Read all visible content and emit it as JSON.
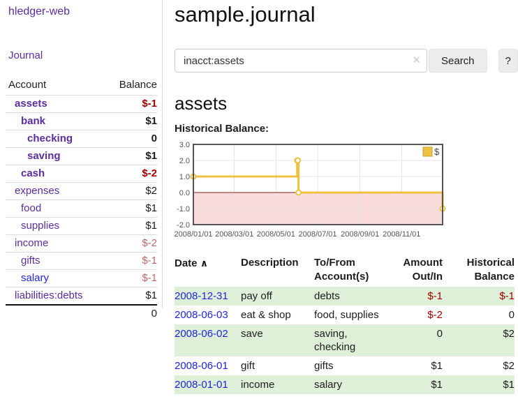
{
  "app": {
    "title": "hledger-web"
  },
  "sidebar": {
    "journal_link": "Journal",
    "table_headers": {
      "account": "Account",
      "balance": "Balance"
    },
    "accounts": [
      {
        "name": "assets",
        "level": 1,
        "bold": true,
        "link": "purple",
        "balance": "$-1",
        "tone": "neg"
      },
      {
        "name": "bank",
        "level": 2,
        "bold": true,
        "link": "purple",
        "balance": "$1",
        "tone": "plain"
      },
      {
        "name": "checking",
        "level": 3,
        "bold": true,
        "link": "purple",
        "balance": "0",
        "tone": "plain"
      },
      {
        "name": "saving",
        "level": 3,
        "bold": true,
        "link": "purple",
        "balance": "$1",
        "tone": "plain"
      },
      {
        "name": "cash",
        "level": 2,
        "bold": true,
        "link": "purple",
        "balance": "$-2",
        "tone": "neg"
      },
      {
        "name": "expenses",
        "level": 1,
        "bold": false,
        "link": "purple",
        "balance": "$2",
        "tone": "plain"
      },
      {
        "name": "food",
        "level": 2,
        "bold": false,
        "link": "purple",
        "balance": "$1",
        "tone": "plain"
      },
      {
        "name": "supplies",
        "level": 2,
        "bold": false,
        "link": "purple",
        "balance": "$1",
        "tone": "plain"
      },
      {
        "name": "income",
        "level": 1,
        "bold": false,
        "link": "purple",
        "balance": "$-2",
        "tone": "rose"
      },
      {
        "name": "gifts",
        "level": 2,
        "bold": false,
        "link": "purple",
        "balance": "$-1",
        "tone": "rose"
      },
      {
        "name": "salary",
        "level": 2,
        "bold": false,
        "link": "blue",
        "balance": "$-1",
        "tone": "rose"
      },
      {
        "name": "liabilities:debts",
        "level": 1,
        "bold": false,
        "link": "purple",
        "balance": "$1",
        "tone": "plain"
      }
    ],
    "total": "0"
  },
  "main": {
    "title": "sample.journal",
    "search": {
      "value": "inacct:assets",
      "clear_icon": "✕",
      "button": "Search",
      "help_button": "?"
    },
    "account_heading": "assets",
    "chart_label": "Historical Balance:"
  },
  "chart_data": {
    "type": "line",
    "step": true,
    "title": "Historical Balance",
    "legend": {
      "position": "top-right",
      "entries": [
        "$"
      ]
    },
    "series": [
      {
        "name": "$",
        "color": "#edc240",
        "points": [
          [
            "2008-01-01",
            1
          ],
          [
            "2008-06-01",
            2
          ],
          [
            "2008-06-02",
            2
          ],
          [
            "2008-06-03",
            0
          ],
          [
            "2008-12-31",
            -1
          ]
        ]
      }
    ],
    "x_range": [
      "2008-01-01",
      "2008-12-31"
    ],
    "ylim": [
      -2,
      3
    ],
    "y_ticks": [
      "3.0",
      "2.0",
      "1.0",
      "0.0",
      "-1.0",
      "-2.0"
    ],
    "x_ticks": [
      "2008/01/01",
      "2008/03/01",
      "2008/05/01",
      "2008/07/01",
      "2008/09/01",
      "2008/11/01"
    ],
    "grid": true,
    "colors": {
      "below_zero_fill": "#f9dbdb",
      "zero_line": "#8b1d1d",
      "grid_line": "#e6e6e6",
      "border": "#545454",
      "tick_text": "#545454",
      "legend_box_border": "#c7a22e",
      "marker_fill": "#ffffff"
    }
  },
  "transactions": {
    "columns": {
      "date": "Date",
      "sort_icon": "∧",
      "description": "Description",
      "accounts": "To/From Account(s)",
      "amount": "Amount Out/In",
      "balance": "Historical Balance"
    },
    "rows": [
      {
        "date": "2008-12-31",
        "description": "pay off",
        "accounts": "debts",
        "amount": "$-1",
        "amount_tone": "neg",
        "balance": "$-1",
        "balance_tone": "neg"
      },
      {
        "date": "2008-06-03",
        "description": "eat & shop",
        "accounts": "food, supplies",
        "amount": "$-2",
        "amount_tone": "neg",
        "balance": "0",
        "balance_tone": "plain"
      },
      {
        "date": "2008-06-02",
        "description": "save",
        "accounts": "saving, checking",
        "amount": "0",
        "amount_tone": "plain",
        "balance": "$2",
        "balance_tone": "plain"
      },
      {
        "date": "2008-06-01",
        "description": "gift",
        "accounts": "gifts",
        "amount": "$1",
        "amount_tone": "plain",
        "balance": "$2",
        "balance_tone": "plain"
      },
      {
        "date": "2008-01-01",
        "description": "income",
        "accounts": "salary",
        "amount": "$1",
        "amount_tone": "plain",
        "balance": "$1",
        "balance_tone": "plain"
      }
    ]
  },
  "colors": {
    "purple_link": "#5b2d9e",
    "blue_link": "#2024dd",
    "negative": "#a40000",
    "rose": "#c06969",
    "row_stripe_green": "#dff0d8",
    "series_gold": "#edc240"
  }
}
